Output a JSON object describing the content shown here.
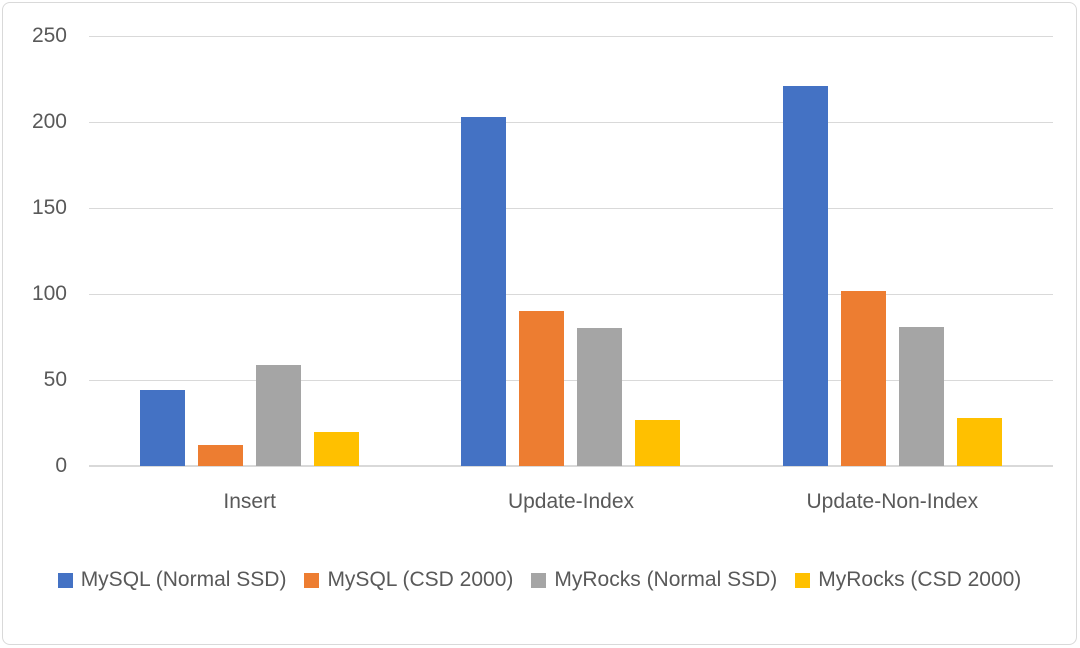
{
  "chart_data": {
    "type": "bar",
    "title": "",
    "xlabel": "",
    "ylabel": "",
    "categories": [
      "Insert",
      "Update-Index",
      "Update-Non-Index"
    ],
    "series": [
      {
        "name": "MySQL (Normal SSD)",
        "color": "#4472C4",
        "values": [
          44,
          203,
          221
        ]
      },
      {
        "name": "MySQL (CSD 2000)",
        "color": "#ED7D31",
        "values": [
          12,
          90,
          102
        ]
      },
      {
        "name": "MyRocks (Normal SSD)",
        "color": "#A5A5A5",
        "values": [
          59,
          80,
          81
        ]
      },
      {
        "name": "MyRocks (CSD 2000)",
        "color": "#FFC000",
        "values": [
          20,
          27,
          28
        ]
      }
    ],
    "ylim": [
      0,
      250
    ],
    "yticks": [
      0,
      50,
      100,
      150,
      200,
      250
    ],
    "grid": "horizontal",
    "legend_position": "bottom"
  },
  "styles": {
    "text_color": "#595959",
    "gridline_color": "#D9D9D9",
    "border_color": "#D9D9D9",
    "background_color": "#FFFFFF"
  }
}
